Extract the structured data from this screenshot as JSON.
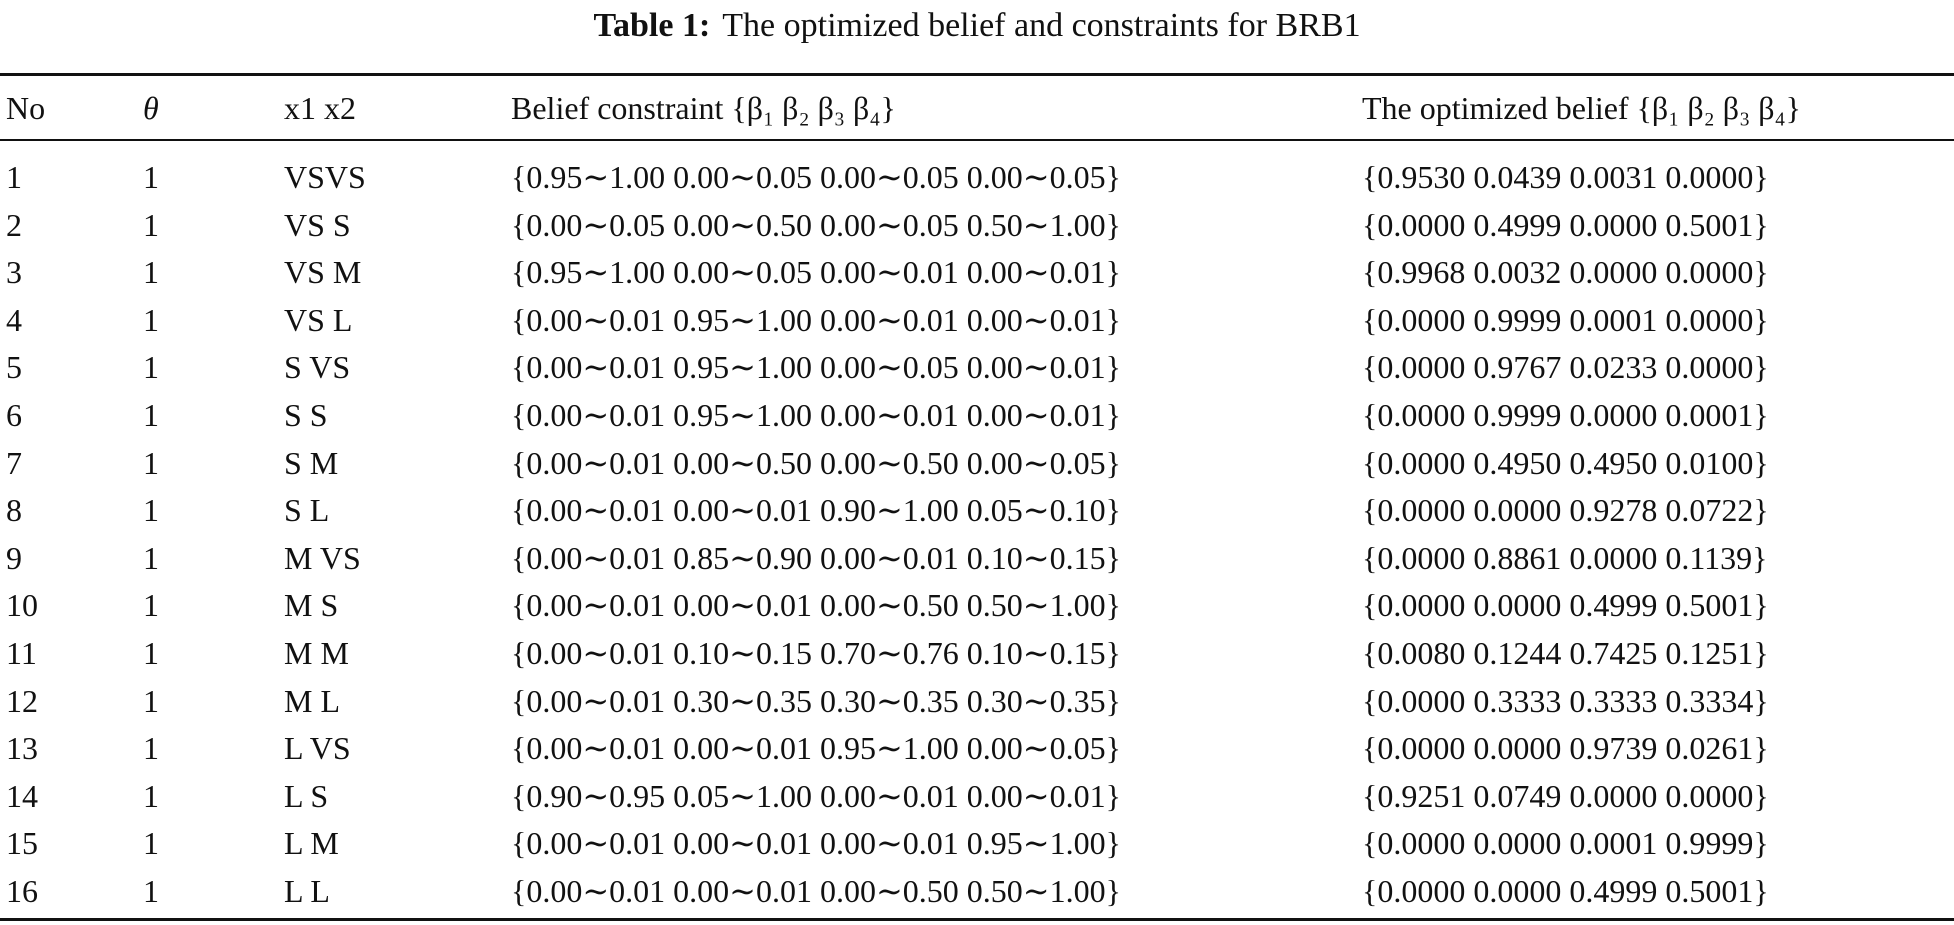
{
  "title": {
    "label": "Table 1:",
    "text": "The optimized belief and constraints for BRB1"
  },
  "table": {
    "header": [
      "No",
      "θ",
      "x1 x2",
      "Belief constraint {β₁ β₂ β₃ β₄}",
      "The optimized belief {β₁ β₂ β₃ β₄}"
    ],
    "rows": [
      [
        "1",
        "1",
        "VSVS",
        "{0.95∼1.00 0.00∼0.05 0.00∼0.05 0.00∼0.05}",
        "{0.9530 0.0439 0.0031 0.0000}"
      ],
      [
        "2",
        "1",
        "VS S",
        "{0.00∼0.05 0.00∼0.50 0.00∼0.05 0.50∼1.00}",
        "{0.0000 0.4999 0.0000 0.5001}"
      ],
      [
        "3",
        "1",
        "VS M",
        "{0.95∼1.00 0.00∼0.05 0.00∼0.01 0.00∼0.01}",
        "{0.9968 0.0032 0.0000 0.0000}"
      ],
      [
        "4",
        "1",
        "VS L",
        "{0.00∼0.01 0.95∼1.00 0.00∼0.01 0.00∼0.01}",
        "{0.0000 0.9999 0.0001 0.0000}"
      ],
      [
        "5",
        "1",
        "S VS",
        "{0.00∼0.01 0.95∼1.00 0.00∼0.05 0.00∼0.01}",
        "{0.0000 0.9767 0.0233 0.0000}"
      ],
      [
        "6",
        "1",
        "S S",
        "{0.00∼0.01 0.95∼1.00 0.00∼0.01 0.00∼0.01}",
        "{0.0000 0.9999 0.0000 0.0001}"
      ],
      [
        "7",
        "1",
        "S M",
        "{0.00∼0.01 0.00∼0.50 0.00∼0.50 0.00∼0.05}",
        "{0.0000 0.4950 0.4950 0.0100}"
      ],
      [
        "8",
        "1",
        "S L",
        "{0.00∼0.01 0.00∼0.01 0.90∼1.00 0.05∼0.10}",
        "{0.0000 0.0000 0.9278 0.0722}"
      ],
      [
        "9",
        "1",
        "M VS",
        "{0.00∼0.01 0.85∼0.90 0.00∼0.01 0.10∼0.15}",
        "{0.0000 0.8861 0.0000 0.1139}"
      ],
      [
        "10",
        "1",
        "M S",
        "{0.00∼0.01 0.00∼0.01 0.00∼0.50 0.50∼1.00}",
        "{0.0000 0.0000 0.4999 0.5001}"
      ],
      [
        "11",
        "1",
        "M M",
        "{0.00∼0.01 0.10∼0.15 0.70∼0.76 0.10∼0.15}",
        "{0.0080 0.1244 0.7425 0.1251}"
      ],
      [
        "12",
        "1",
        "M L",
        "{0.00∼0.01 0.30∼0.35 0.30∼0.35 0.30∼0.35}",
        "{0.0000 0.3333 0.3333 0.3334}"
      ],
      [
        "13",
        "1",
        "L VS",
        "{0.00∼0.01 0.00∼0.01 0.95∼1.00 0.00∼0.05}",
        "{0.0000 0.0000 0.9739 0.0261}"
      ],
      [
        "14",
        "1",
        "L S",
        "{0.90∼0.95 0.05∼1.00 0.00∼0.01 0.00∼0.01}",
        "{0.9251 0.0749 0.0000 0.0000}"
      ],
      [
        "15",
        "1",
        "L M",
        "{0.00∼0.01 0.00∼0.01 0.00∼0.01 0.95∼1.00}",
        "{0.0000 0.0000 0.0001 0.9999}"
      ],
      [
        "16",
        "1",
        "L L",
        "{0.00∼0.01 0.00∼0.01 0.00∼0.50 0.50∼1.00}",
        "{0.0000 0.0000 0.4999 0.5001}"
      ]
    ]
  }
}
